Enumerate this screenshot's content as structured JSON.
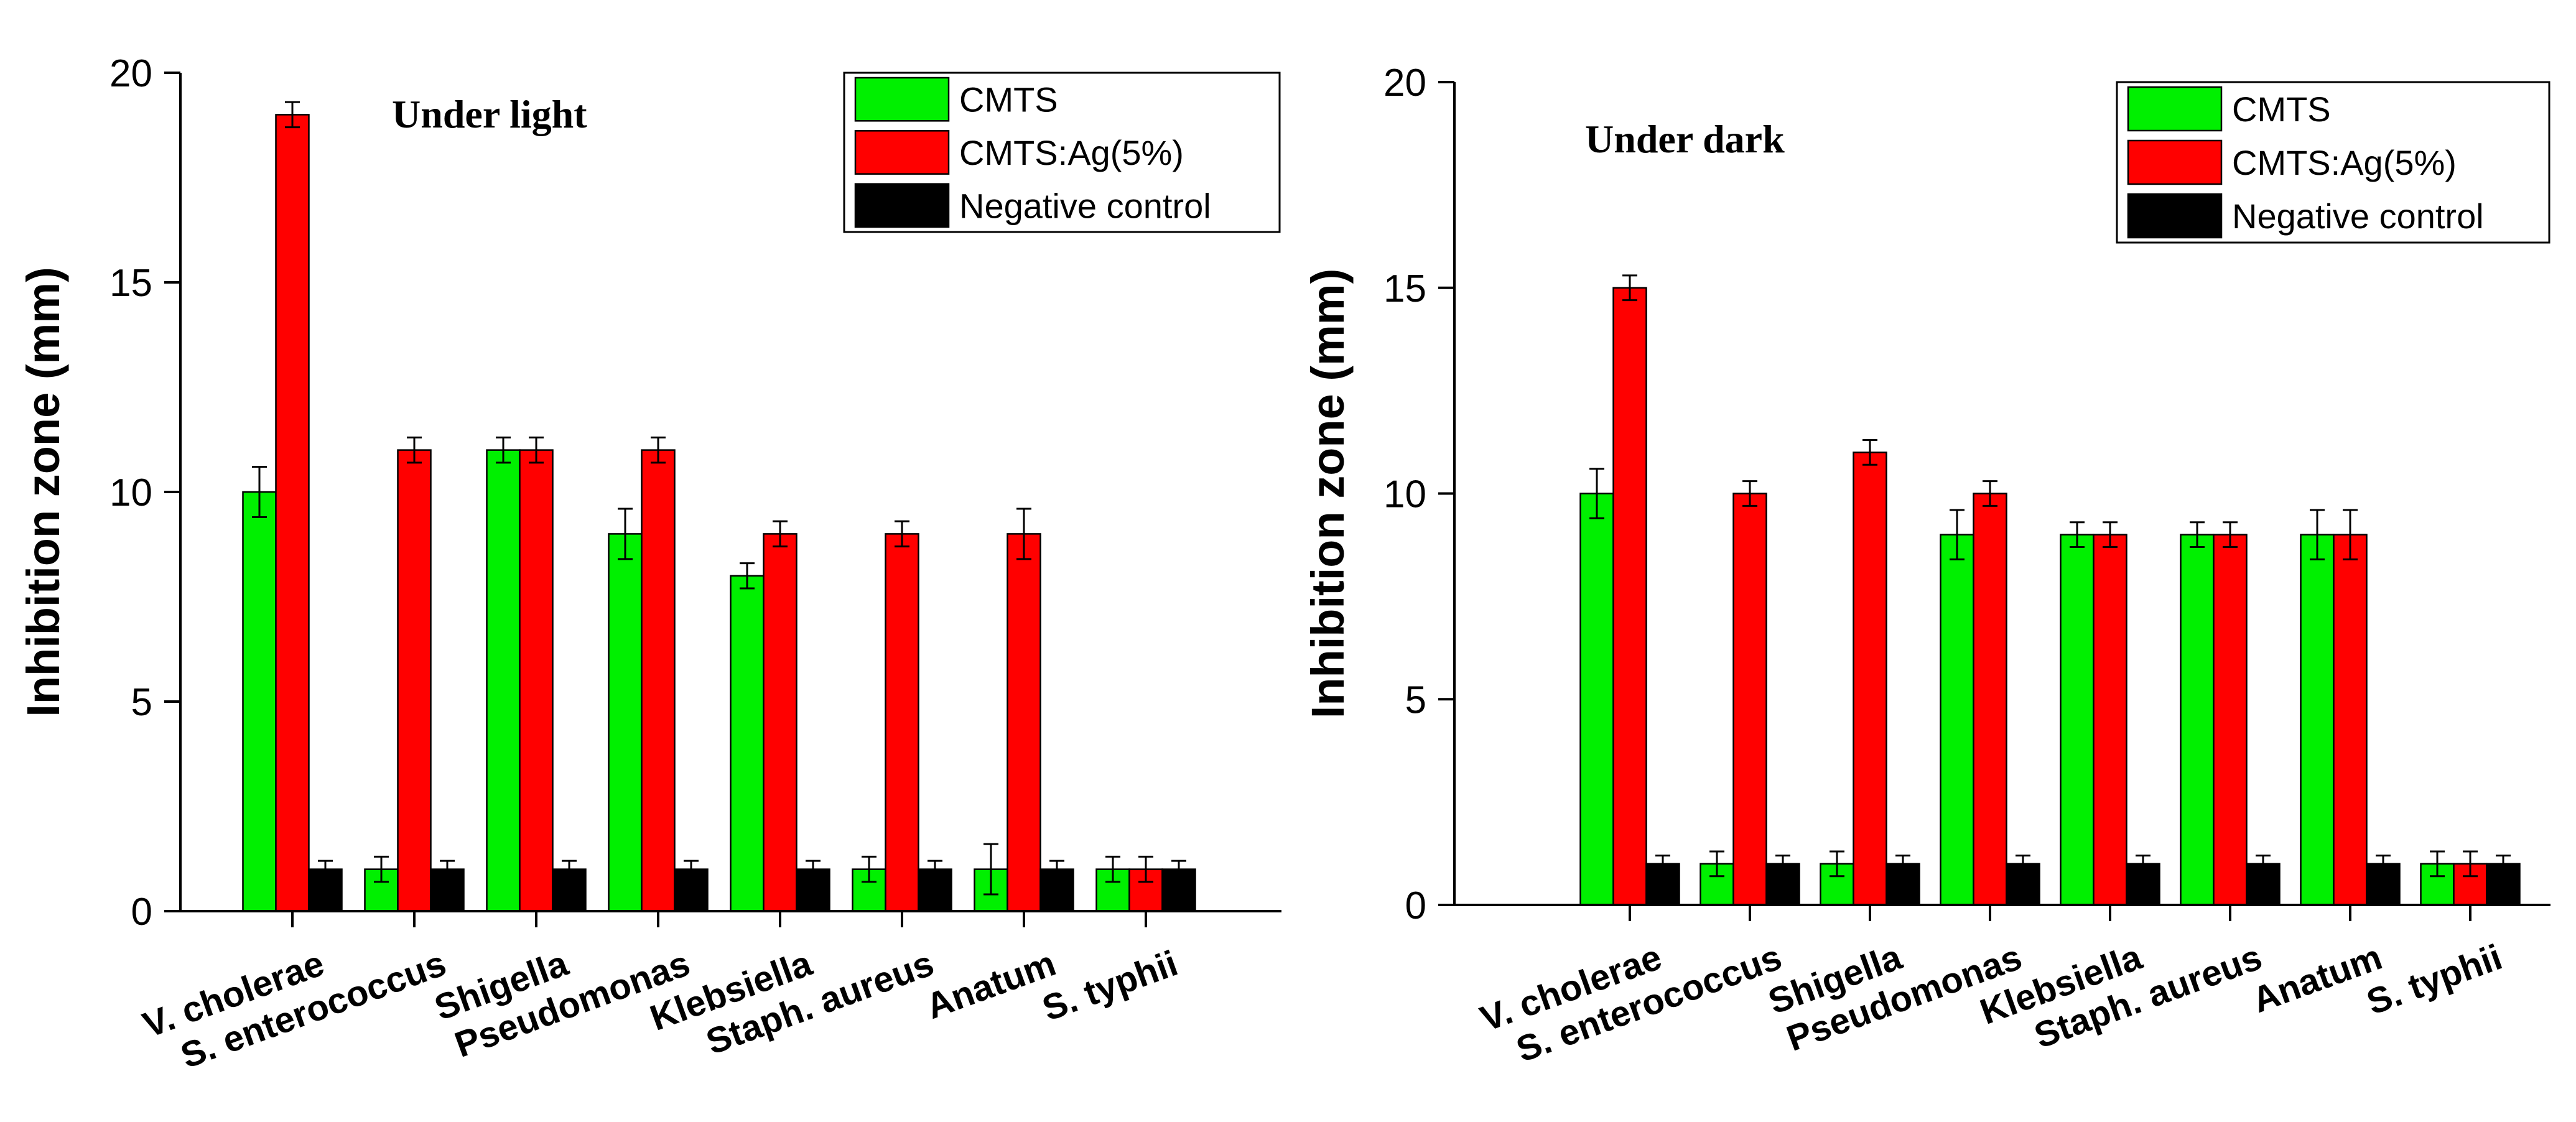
{
  "colors": {
    "cmts": "#00f000",
    "cmts_ag": "#ff0000",
    "negative": "#000000",
    "axis": "#000000",
    "background": "#ffffff"
  },
  "chart_data": [
    {
      "type": "bar",
      "title": "Under light",
      "xlabel": "",
      "ylabel": "Inhibition zone (mm)",
      "ylim": [
        0,
        20
      ],
      "yticks": [
        0,
        5,
        10,
        15,
        20
      ],
      "ytick_labels": [
        "0",
        "5",
        "10",
        "15",
        "20"
      ],
      "grid": false,
      "legend_position": "top-right",
      "categories": [
        "V. cholerae",
        "S. enterococcus",
        "Shigella",
        "Pseudomonas",
        "Klebsiella",
        "Staph.  aureus",
        "Anatum",
        "S. typhii"
      ],
      "series": [
        {
          "name": "CMTS",
          "color_key": "cmts",
          "values": [
            10,
            1,
            11,
            9,
            8,
            1,
            1,
            1
          ],
          "errors": [
            0.6,
            0.3,
            0.3,
            0.6,
            0.3,
            0.3,
            0.6,
            0.3
          ]
        },
        {
          "name": "CMTS:Ag(5%)",
          "color_key": "cmts_ag",
          "values": [
            19,
            11,
            11,
            11,
            9,
            9,
            9,
            1
          ],
          "errors": [
            0.3,
            0.3,
            0.3,
            0.3,
            0.3,
            0.3,
            0.6,
            0.3
          ]
        },
        {
          "name": "Negative control",
          "color_key": "negative",
          "values": [
            1,
            1,
            1,
            1,
            1,
            1,
            1,
            1
          ],
          "errors": [
            0.2,
            0.2,
            0.2,
            0.2,
            0.2,
            0.2,
            0.2,
            0.2
          ]
        }
      ]
    },
    {
      "type": "bar",
      "title": "Under dark",
      "xlabel": "",
      "ylabel": "Inhibition zone (mm)",
      "ylim": [
        0,
        20
      ],
      "yticks": [
        0,
        5,
        10,
        15,
        20
      ],
      "ytick_labels": [
        "0",
        "5",
        "10",
        "15",
        "20"
      ],
      "grid": false,
      "legend_position": "top-right",
      "categories": [
        "V. cholerae",
        "S. enterococcus",
        "Shigella",
        "Pseudomonas",
        "Klebsiella",
        "Staph.  aureus",
        "Anatum",
        "S. typhii"
      ],
      "series": [
        {
          "name": "CMTS",
          "color_key": "cmts",
          "values": [
            10,
            1,
            1,
            9,
            9,
            9,
            9,
            1
          ],
          "errors": [
            0.6,
            0.3,
            0.3,
            0.6,
            0.3,
            0.3,
            0.6,
            0.3
          ]
        },
        {
          "name": "CMTS:Ag(5%)",
          "color_key": "cmts_ag",
          "values": [
            15,
            10,
            11,
            10,
            9,
            9,
            9,
            1
          ],
          "errors": [
            0.3,
            0.3,
            0.3,
            0.3,
            0.3,
            0.3,
            0.6,
            0.3
          ]
        },
        {
          "name": "Negative control",
          "color_key": "negative",
          "values": [
            1,
            1,
            1,
            1,
            1,
            1,
            1,
            1
          ],
          "errors": [
            0.2,
            0.2,
            0.2,
            0.2,
            0.2,
            0.2,
            0.2,
            0.2
          ]
        }
      ]
    }
  ]
}
